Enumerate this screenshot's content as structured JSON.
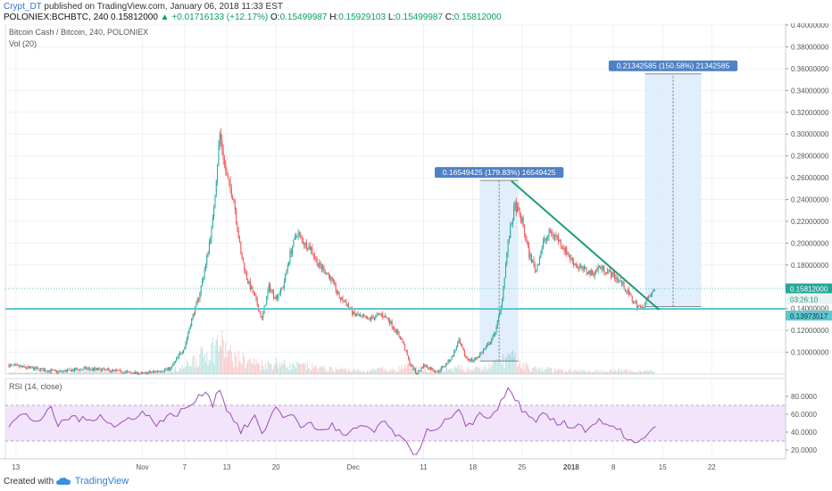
{
  "header": {
    "author": "Crypt_DT",
    "published": "published on TradingView.com, January 06, 2018 11:33 EST",
    "symbol": "POLONIEX:BCHBTC, 240",
    "last": "0.15812000",
    "arrow": "▲",
    "change": "+0.01716133 (+12.17%)",
    "o_label": "O:",
    "o": "0.15499987",
    "h_label": "H:",
    "h": "0.15929103",
    "l_label": "L:",
    "l": "0.15499987",
    "c_label": "C:",
    "c": "0.15812000"
  },
  "legend": {
    "pair": "Bitcoin Cash / Bitcoin, 240, POLONIEX",
    "vol": "Vol (20)",
    "rsi": "RSI (14, close)"
  },
  "footer": {
    "created_with": "Created with",
    "brand": "TradingView"
  },
  "colors": {
    "up": "#26a69a",
    "down": "#ef5350",
    "trend": "#1e9e74",
    "support": "#5fc7cf",
    "rsi_line": "#9c4fb8",
    "rsi_band": "#f2e4fb",
    "measure_fill": "#dcebfb",
    "measure_label": "#4f81c7"
  },
  "chart_data": [
    {
      "type": "candlestick",
      "title": "Bitcoin Cash / Bitcoin, 240, POLONIEX",
      "ylim": [
        0.08,
        0.4
      ],
      "y_ticks": [
        "0.40000000",
        "0.38000000",
        "0.36000000",
        "0.34000000",
        "0.32000000",
        "0.30000000",
        "0.28000000",
        "0.26000000",
        "0.24000000",
        "0.22000000",
        "0.20000000",
        "0.18000000",
        "0.16000000",
        "0.14000000",
        "0.12000000",
        "0.10000000"
      ],
      "y_tick_values": [
        0.4,
        0.38,
        0.36,
        0.34,
        0.32,
        0.3,
        0.28,
        0.26,
        0.24,
        0.22,
        0.2,
        0.18,
        0.16,
        0.14,
        0.12,
        0.1
      ],
      "x_ticks": [
        "13",
        "Nov",
        "7",
        "13",
        "20",
        "Dec",
        "11",
        "18",
        "25",
        "2018",
        "8",
        "15",
        "22"
      ],
      "x_tick_days": [
        -18,
        0,
        6,
        12,
        19,
        30,
        40,
        47,
        54,
        61,
        67,
        74,
        81
      ],
      "price_path": [
        [
          -19,
          0.088
        ],
        [
          -12,
          0.082
        ],
        [
          -8,
          0.085
        ],
        [
          -4,
          0.083
        ],
        [
          0,
          0.08
        ],
        [
          4,
          0.085
        ],
        [
          6,
          0.105
        ],
        [
          7,
          0.13
        ],
        [
          8,
          0.15
        ],
        [
          9,
          0.18
        ],
        [
          10,
          0.22
        ],
        [
          11,
          0.3
        ],
        [
          12,
          0.26
        ],
        [
          13,
          0.24
        ],
        [
          14,
          0.19
        ],
        [
          15,
          0.165
        ],
        [
          16,
          0.15
        ],
        [
          17,
          0.13
        ],
        [
          18,
          0.16
        ],
        [
          19,
          0.15
        ],
        [
          20,
          0.16
        ],
        [
          21,
          0.19
        ],
        [
          22,
          0.21
        ],
        [
          23,
          0.2
        ],
        [
          24,
          0.195
        ],
        [
          25,
          0.18
        ],
        [
          26,
          0.175
        ],
        [
          27,
          0.165
        ],
        [
          28,
          0.15
        ],
        [
          29,
          0.145
        ],
        [
          30,
          0.135
        ],
        [
          32,
          0.13
        ],
        [
          34,
          0.135
        ],
        [
          35,
          0.13
        ],
        [
          36,
          0.12
        ],
        [
          37,
          0.11
        ],
        [
          38,
          0.09
        ],
        [
          39,
          0.08
        ],
        [
          40,
          0.088
        ],
        [
          41,
          0.085
        ],
        [
          42,
          0.082
        ],
        [
          43,
          0.088
        ],
        [
          44,
          0.095
        ],
        [
          45,
          0.11
        ],
        [
          46,
          0.095
        ],
        [
          47,
          0.092
        ],
        [
          48,
          0.098
        ],
        [
          49,
          0.105
        ],
        [
          50,
          0.115
        ],
        [
          51,
          0.14
        ],
        [
          52,
          0.2
        ],
        [
          53,
          0.235
        ],
        [
          54,
          0.22
        ],
        [
          55,
          0.19
        ],
        [
          56,
          0.175
        ],
        [
          57,
          0.2
        ],
        [
          58,
          0.21
        ],
        [
          59,
          0.205
        ],
        [
          60,
          0.195
        ],
        [
          61,
          0.185
        ],
        [
          62,
          0.178
        ],
        [
          63,
          0.175
        ],
        [
          64,
          0.172
        ],
        [
          65,
          0.178
        ],
        [
          66,
          0.175
        ],
        [
          67,
          0.17
        ],
        [
          68,
          0.165
        ],
        [
          69,
          0.155
        ],
        [
          70,
          0.145
        ],
        [
          71,
          0.14
        ],
        [
          72,
          0.1498
        ],
        [
          73,
          0.1581
        ]
      ],
      "volume_path": [
        [
          -19,
          1
        ],
        [
          -12,
          1
        ],
        [
          -8,
          2
        ],
        [
          -4,
          2
        ],
        [
          0,
          1
        ],
        [
          4,
          2
        ],
        [
          6,
          4
        ],
        [
          7,
          8
        ],
        [
          8,
          10
        ],
        [
          9,
          12
        ],
        [
          10,
          16
        ],
        [
          11,
          20
        ],
        [
          12,
          14
        ],
        [
          13,
          10
        ],
        [
          14,
          9
        ],
        [
          15,
          8
        ],
        [
          16,
          7
        ],
        [
          17,
          6
        ],
        [
          18,
          6
        ],
        [
          19,
          7
        ],
        [
          20,
          6
        ],
        [
          21,
          5
        ],
        [
          22,
          5
        ],
        [
          23,
          5
        ],
        [
          24,
          4
        ],
        [
          25,
          4
        ],
        [
          26,
          3
        ],
        [
          27,
          3
        ],
        [
          28,
          3
        ],
        [
          29,
          3
        ],
        [
          30,
          2
        ],
        [
          32,
          2
        ],
        [
          34,
          3
        ],
        [
          35,
          2
        ],
        [
          36,
          3
        ],
        [
          37,
          4
        ],
        [
          38,
          4
        ],
        [
          39,
          3
        ],
        [
          40,
          3
        ],
        [
          41,
          2
        ],
        [
          42,
          2
        ],
        [
          43,
          3
        ],
        [
          44,
          3
        ],
        [
          45,
          4
        ],
        [
          46,
          3
        ],
        [
          47,
          3
        ],
        [
          48,
          3
        ],
        [
          49,
          4
        ],
        [
          50,
          6
        ],
        [
          51,
          8
        ],
        [
          52,
          10
        ],
        [
          53,
          9
        ],
        [
          54,
          6
        ],
        [
          55,
          4
        ],
        [
          56,
          3
        ],
        [
          57,
          3
        ],
        [
          58,
          3
        ],
        [
          59,
          2
        ],
        [
          60,
          2
        ],
        [
          61,
          2
        ],
        [
          62,
          2
        ],
        [
          63,
          2
        ],
        [
          64,
          2
        ],
        [
          65,
          2
        ],
        [
          66,
          2
        ],
        [
          67,
          2
        ],
        [
          68,
          2
        ],
        [
          69,
          2
        ],
        [
          70,
          2
        ],
        [
          71,
          2
        ],
        [
          72,
          2
        ],
        [
          73,
          2
        ]
      ],
      "current_price": "0.15812000",
      "countdown": "03:26:10",
      "support_price": "0.13973517",
      "support_value": 0.13973517,
      "current_value": 0.15812,
      "trendline": [
        [
          52.5,
          0.257
        ],
        [
          73.5,
          0.139
        ]
      ],
      "measure_1": {
        "label": "0.16549425 (179.83%) 16549425",
        "x0": 48.0,
        "x1": 53.5,
        "y0": 0.092,
        "y1": 0.2575
      },
      "measure_2": {
        "label": "0.21342585 (150.58%) 21342585",
        "x0": 71.5,
        "x1": 79.5,
        "y0": 0.1418,
        "y1": 0.3552
      }
    },
    {
      "type": "line",
      "title": "RSI (14, close)",
      "ylim": [
        10,
        100
      ],
      "y_ticks": [
        "80.0000",
        "60.0000",
        "40.0000",
        "20.0000"
      ],
      "y_tick_values": [
        80,
        60,
        40,
        20
      ],
      "band": [
        30,
        70
      ],
      "rsi_path": [
        [
          -19,
          48
        ],
        [
          -17,
          60
        ],
        [
          -15,
          52
        ],
        [
          -13,
          65
        ],
        [
          -12,
          48
        ],
        [
          -10,
          58
        ],
        [
          -8,
          52
        ],
        [
          -6,
          60
        ],
        [
          -4,
          45
        ],
        [
          -2,
          55
        ],
        [
          0,
          62
        ],
        [
          2,
          50
        ],
        [
          4,
          58
        ],
        [
          6,
          65
        ],
        [
          8,
          78
        ],
        [
          9,
          88
        ],
        [
          10,
          72
        ],
        [
          11,
          90
        ],
        [
          12,
          65
        ],
        [
          13,
          55
        ],
        [
          14,
          40
        ],
        [
          15,
          48
        ],
        [
          16,
          58
        ],
        [
          17,
          35
        ],
        [
          18,
          55
        ],
        [
          19,
          68
        ],
        [
          20,
          58
        ],
        [
          21,
          62
        ],
        [
          22,
          50
        ],
        [
          23,
          45
        ],
        [
          24,
          52
        ],
        [
          25,
          40
        ],
        [
          26,
          44
        ],
        [
          27,
          48
        ],
        [
          28,
          40
        ],
        [
          29,
          35
        ],
        [
          30,
          42
        ],
        [
          32,
          46
        ],
        [
          33,
          40
        ],
        [
          34,
          52
        ],
        [
          35,
          45
        ],
        [
          36,
          38
        ],
        [
          37,
          30
        ],
        [
          38,
          22
        ],
        [
          39,
          15
        ],
        [
          40,
          35
        ],
        [
          41,
          45
        ],
        [
          42,
          40
        ],
        [
          43,
          52
        ],
        [
          44,
          55
        ],
        [
          45,
          62
        ],
        [
          46,
          48
        ],
        [
          47,
          52
        ],
        [
          48,
          60
        ],
        [
          49,
          56
        ],
        [
          50,
          62
        ],
        [
          51,
          72
        ],
        [
          52,
          88
        ],
        [
          53,
          78
        ],
        [
          54,
          66
        ],
        [
          55,
          55
        ],
        [
          56,
          50
        ],
        [
          57,
          60
        ],
        [
          58,
          55
        ],
        [
          59,
          48
        ],
        [
          60,
          52
        ],
        [
          61,
          45
        ],
        [
          62,
          50
        ],
        [
          63,
          42
        ],
        [
          64,
          48
        ],
        [
          65,
          52
        ],
        [
          66,
          46
        ],
        [
          67,
          44
        ],
        [
          68,
          40
        ],
        [
          69,
          34
        ],
        [
          70,
          26
        ],
        [
          71,
          30
        ],
        [
          72,
          36
        ],
        [
          73,
          48
        ]
      ]
    }
  ]
}
